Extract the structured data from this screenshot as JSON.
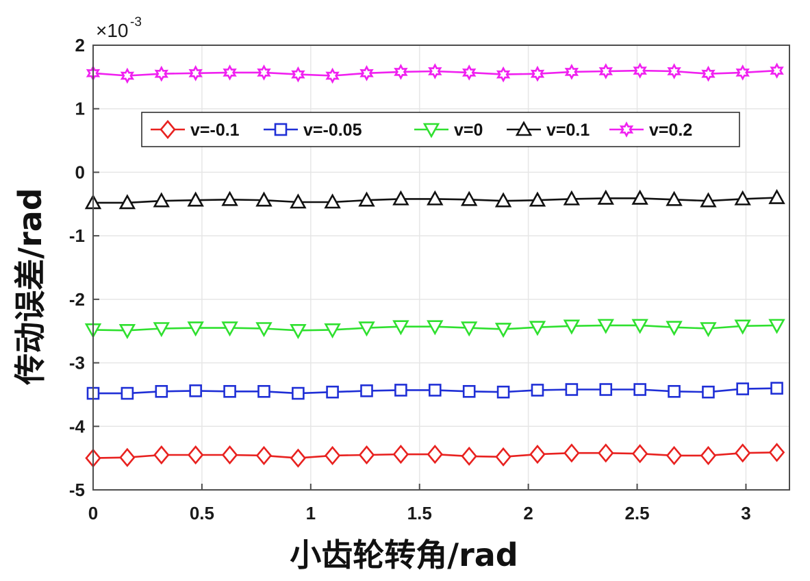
{
  "chart_data": {
    "type": "line",
    "title": "",
    "xlabel": "小齿轮转角/rad",
    "ylabel": "传动误差/rad",
    "y_multiplier_label": "×10",
    "y_multiplier_exponent": "-3",
    "xlim": [
      0,
      3.2
    ],
    "ylim": [
      -5,
      2
    ],
    "xticks": [
      0,
      0.5,
      1,
      1.5,
      2,
      2.5,
      3
    ],
    "xtick_labels": [
      "0",
      "0.5",
      "1",
      "1.5",
      "2",
      "2.5",
      "3"
    ],
    "yticks": [
      2,
      1,
      0,
      -1,
      -2,
      -3,
      -4,
      -5
    ],
    "ytick_labels": [
      "2",
      "1",
      "0",
      "-1",
      "-2",
      "-3",
      "-4",
      "-5"
    ],
    "grid": true,
    "legend_position": "top",
    "x": [
      0,
      0.157,
      0.314,
      0.471,
      0.628,
      0.785,
      0.942,
      1.1,
      1.257,
      1.414,
      1.571,
      1.728,
      1.885,
      2.042,
      2.199,
      2.356,
      2.513,
      2.67,
      2.827,
      2.985,
      3.142
    ],
    "series": [
      {
        "name": "v=-0.1",
        "color": "#e8211f",
        "marker": "diamond",
        "values": [
          -4.5,
          -4.49,
          -4.45,
          -4.45,
          -4.45,
          -4.46,
          -4.5,
          -4.46,
          -4.45,
          -4.44,
          -4.44,
          -4.47,
          -4.48,
          -4.44,
          -4.42,
          -4.42,
          -4.43,
          -4.46,
          -4.46,
          -4.42,
          -4.41
        ]
      },
      {
        "name": "v=-0.05",
        "color": "#1f2fd6",
        "marker": "square",
        "values": [
          -3.48,
          -3.48,
          -3.45,
          -3.44,
          -3.45,
          -3.45,
          -3.48,
          -3.46,
          -3.44,
          -3.43,
          -3.43,
          -3.45,
          -3.46,
          -3.43,
          -3.42,
          -3.42,
          -3.42,
          -3.45,
          -3.46,
          -3.41,
          -3.4
        ]
      },
      {
        "name": "v=0",
        "color": "#2fe02f",
        "marker": "triangle-down",
        "values": [
          -2.48,
          -2.49,
          -2.46,
          -2.45,
          -2.45,
          -2.46,
          -2.49,
          -2.48,
          -2.45,
          -2.43,
          -2.43,
          -2.45,
          -2.47,
          -2.44,
          -2.42,
          -2.41,
          -2.41,
          -2.44,
          -2.46,
          -2.42,
          -2.41
        ]
      },
      {
        "name": "v=0.1",
        "color": "#111111",
        "marker": "triangle-up",
        "values": [
          -0.48,
          -0.48,
          -0.45,
          -0.44,
          -0.43,
          -0.44,
          -0.47,
          -0.47,
          -0.44,
          -0.42,
          -0.42,
          -0.43,
          -0.45,
          -0.44,
          -0.42,
          -0.41,
          -0.41,
          -0.43,
          -0.45,
          -0.42,
          -0.4
        ]
      },
      {
        "name": "v=0.2",
        "color": "#f020f0",
        "marker": "hexagram",
        "values": [
          1.56,
          1.52,
          1.55,
          1.56,
          1.57,
          1.57,
          1.54,
          1.52,
          1.56,
          1.58,
          1.59,
          1.57,
          1.54,
          1.55,
          1.58,
          1.59,
          1.6,
          1.59,
          1.55,
          1.57,
          1.6
        ]
      }
    ]
  }
}
